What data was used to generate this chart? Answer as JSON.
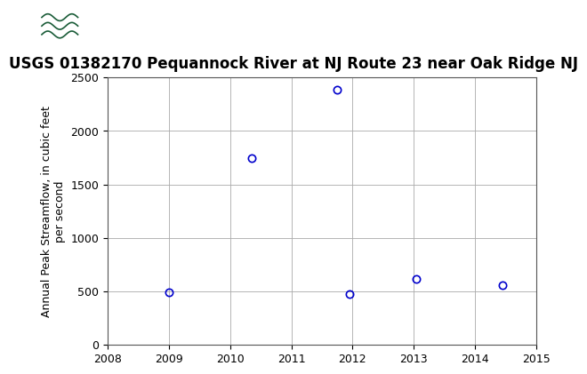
{
  "title": "USGS 01382170 Pequannock River at NJ Route 23 near Oak Ridge NJ",
  "xlabel": "",
  "ylabel": "Annual Peak Streamflow, in cubic feet\nper second",
  "xlim": [
    2008,
    2015
  ],
  "ylim": [
    0,
    2500
  ],
  "xticks": [
    2008,
    2009,
    2010,
    2011,
    2012,
    2013,
    2014,
    2015
  ],
  "yticks": [
    0,
    500,
    1000,
    1500,
    2000,
    2500
  ],
  "x_data": [
    2009.0,
    2010.35,
    2011.75,
    2011.95,
    2013.05,
    2014.45
  ],
  "y_data": [
    490,
    1750,
    2390,
    475,
    620,
    555
  ],
  "marker_color": "#0000CC",
  "marker_size": 6,
  "marker_style": "o",
  "marker_facecolor": "none",
  "grid_color": "#AAAAAA",
  "plot_bg": "#FFFFFF",
  "fig_bg": "#FFFFFF",
  "header_color": "#1a5c38",
  "title_fontsize": 12,
  "axis_label_fontsize": 9,
  "tick_fontsize": 9
}
